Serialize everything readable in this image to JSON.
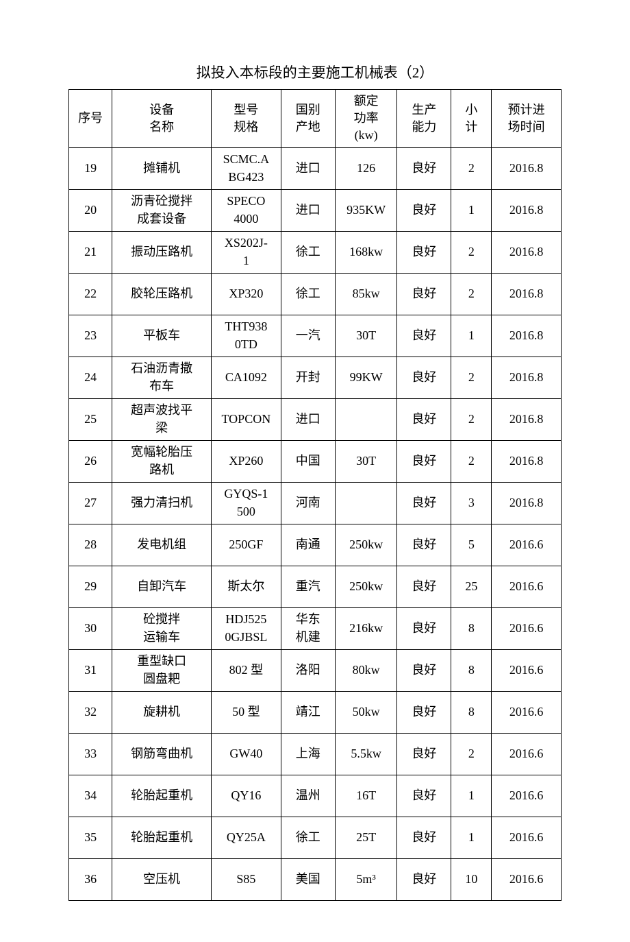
{
  "title": "拟投入本标段的主要施工机械表（2）",
  "table": {
    "columns": [
      {
        "label": "序号",
        "class": "col-seq"
      },
      {
        "label": "设备\n名称",
        "class": "col-name"
      },
      {
        "label": "型号\n规格",
        "class": "col-model"
      },
      {
        "label": "国别\n产地",
        "class": "col-origin"
      },
      {
        "label": "额定\n功率\n(kw)",
        "class": "col-power"
      },
      {
        "label": "生产\n能力",
        "class": "col-capacity"
      },
      {
        "label": "小\n计",
        "class": "col-count"
      },
      {
        "label": "预计进\n场时间",
        "class": "col-date"
      }
    ],
    "rows": [
      [
        "19",
        "摊铺机",
        "SCMC.A\nBG423",
        "进口",
        "126",
        "良好",
        "2",
        "2016.8"
      ],
      [
        "20",
        "沥青砼搅拌\n成套设备",
        "SPECO\n4000",
        "进口",
        "935KW",
        "良好",
        "1",
        "2016.8"
      ],
      [
        "21",
        "振动压路机",
        "XS202J-\n1",
        "徐工",
        "168kw",
        "良好",
        "2",
        "2016.8"
      ],
      [
        "22",
        "胶轮压路机",
        "XP320",
        "徐工",
        "85kw",
        "良好",
        "2",
        "2016.8"
      ],
      [
        "23",
        "平板车",
        "THT938\n0TD",
        "一汽",
        "30T",
        "良好",
        "1",
        "2016.8"
      ],
      [
        "24",
        "石油沥青撒\n布车",
        "CA1092",
        "开封",
        "99KW",
        "良好",
        "2",
        "2016.8"
      ],
      [
        "25",
        "超声波找平\n梁",
        "TOPCON",
        "进口",
        "",
        "良好",
        "2",
        "2016.8"
      ],
      [
        "26",
        "宽幅轮胎压\n路机",
        "XP260",
        "中国",
        "30T",
        "良好",
        "2",
        "2016.8"
      ],
      [
        "27",
        "强力清扫机",
        "GYQS-1\n500",
        "河南",
        "",
        "良好",
        "3",
        "2016.8"
      ],
      [
        "28",
        "发电机组",
        "250GF",
        "南通",
        "250kw",
        "良好",
        "5",
        "2016.6"
      ],
      [
        "29",
        "自卸汽车",
        "斯太尔",
        "重汽",
        "250kw",
        "良好",
        "25",
        "2016.6"
      ],
      [
        "30",
        "砼搅拌\n运输车",
        "HDJ525\n0GJBSL",
        "华东\n机建",
        "216kw",
        "良好",
        "8",
        "2016.6"
      ],
      [
        "31",
        "重型缺口\n圆盘耙",
        "802 型",
        "洛阳",
        "80kw",
        "良好",
        "8",
        "2016.6"
      ],
      [
        "32",
        "旋耕机",
        "50 型",
        "靖江",
        "50kw",
        "良好",
        "8",
        "2016.6"
      ],
      [
        "33",
        "钢筋弯曲机",
        "GW40",
        "上海",
        "5.5kw",
        "良好",
        "2",
        "2016.6"
      ],
      [
        "34",
        "轮胎起重机",
        "QY16",
        "温州",
        "16T",
        "良好",
        "1",
        "2016.6"
      ],
      [
        "35",
        "轮胎起重机",
        "QY25A",
        "徐工",
        "25T",
        "良好",
        "1",
        "2016.6"
      ],
      [
        "36",
        "空压机",
        "S85",
        "美国",
        "5m³",
        "良好",
        "10",
        "2016.6"
      ]
    ]
  }
}
